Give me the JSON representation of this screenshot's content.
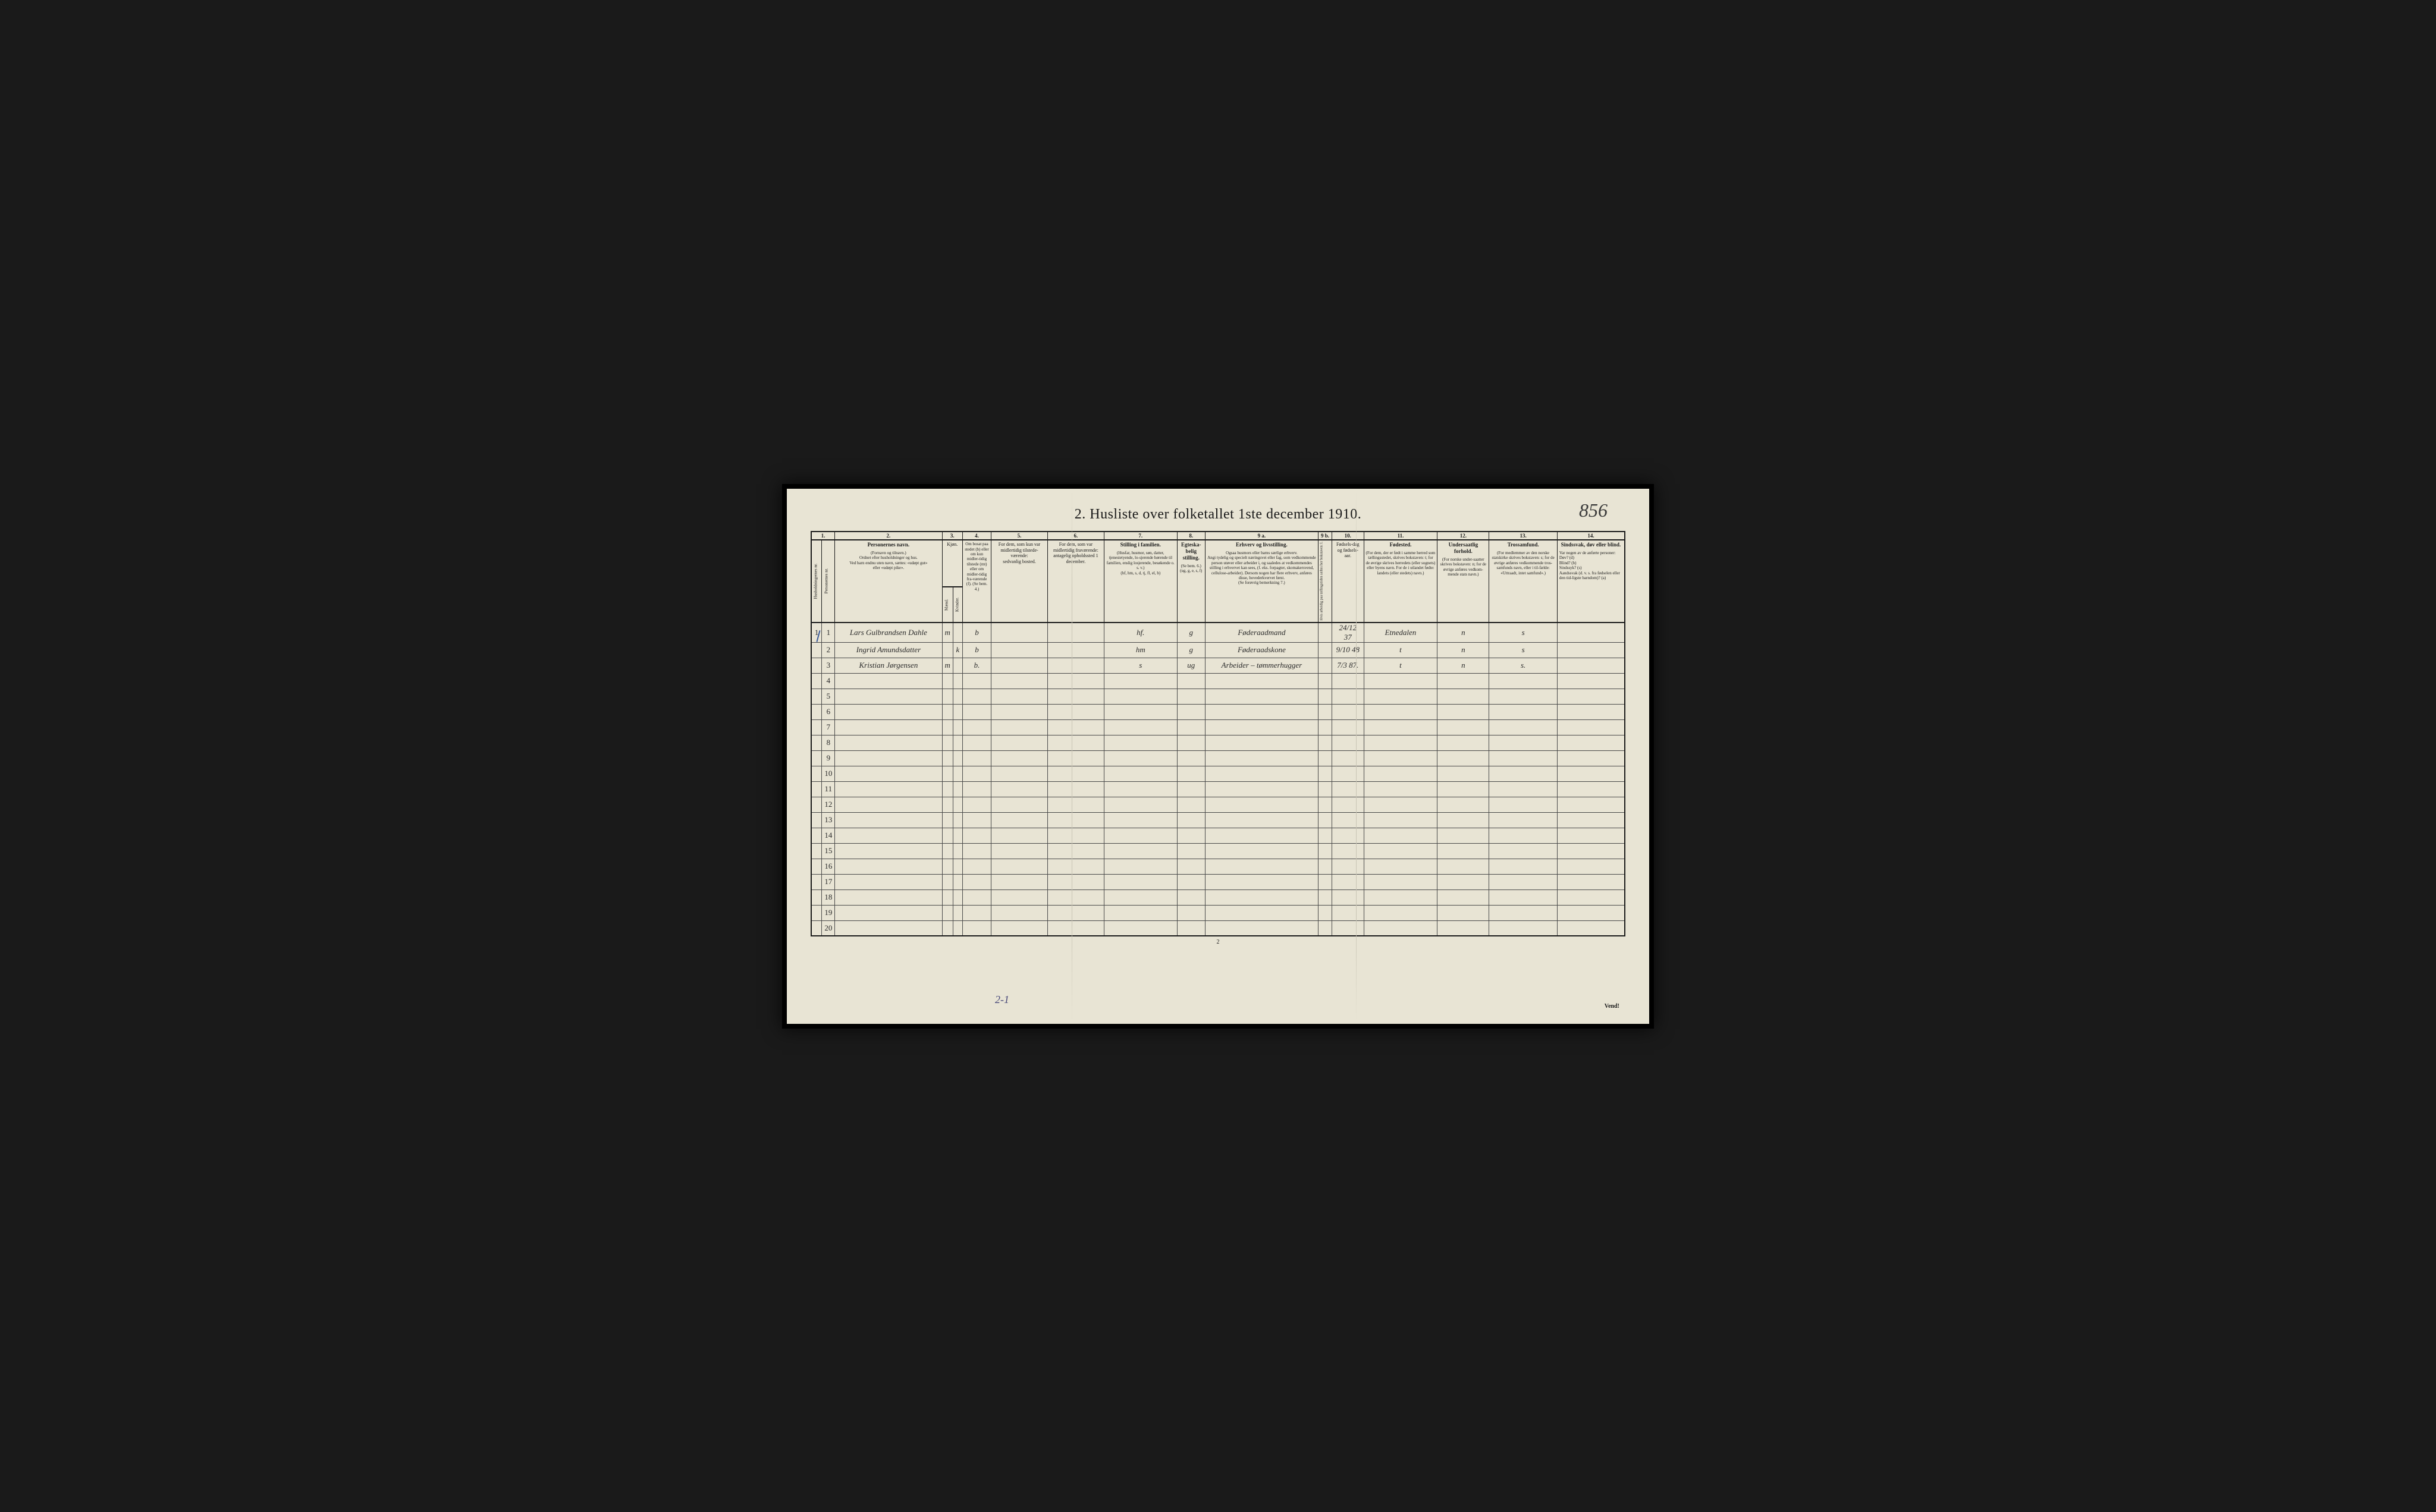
{
  "title": "2.  Husliste over folketallet 1ste december 1910.",
  "handwritten_page_number": "856",
  "footer_page": "2",
  "vend_label": "Vend!",
  "bottom_note": "2-1",
  "colors": {
    "page_bg": "#e8e4d4",
    "frame_bg": "#000000",
    "body_bg": "#1a1a1a",
    "border": "#1a1a1a",
    "cell_border": "#4a4a4a",
    "text": "#1a1a1a",
    "handwritten": "#2a2a2a",
    "blue_mark": "#3a5a9a",
    "fold": "#c8c4b4"
  },
  "column_numbers": [
    "1.",
    "2.",
    "3.",
    "4.",
    "5.",
    "6.",
    "7.",
    "8.",
    "9 a.",
    "9 b.",
    "10.",
    "11.",
    "12.",
    "13.",
    "14."
  ],
  "headers": {
    "col1_a": "Husholdningernes nr.",
    "col1_b": "Personernes nr.",
    "col2_main": "Personernes navn.",
    "col2_sub": "(Fornavn og tilnavn.)\nOrdnet efter husholdninger og hus.\nVed barn endnu uten navn, sættes: «udøpt gut»\neller «udøpt pike».",
    "col3_main": "Kjøn.",
    "col3_m": "Mænd.",
    "col3_k": "Kvinder.",
    "col3_mk": "m. k.",
    "col4": "Om bosat paa stedet (b) eller om kun midler-tidig tilstede (mt) eller om midler-tidig fra-værende (f). (Se bem. 4.)",
    "col5": "For dem, som kun var midlertidig tilstede-værende:\nsedvanlig bosted.",
    "col6": "For dem, som var midlertidig fraværende:\nantagelig opholdssted 1 december.",
    "col7_main": "Stilling i familien.",
    "col7_sub": "(Husfar, husmor, søn, datter, tjenestetyende, lo-sjerende hørende til familien, enslig losjerende, besøkende o. s. v.)\n(hf, hm, s, d, tj, fl, el, b)",
    "col8_main": "Egteska-belig stilling.",
    "col8_sub": "(Se bem. 6.)\n(ug, g, e, s, f)",
    "col9a_main": "Erhverv og livsstilling.",
    "col9a_sub": "Ogsaa husmors eller barns særlige erhverv.\nAngi tydelig og specielt næringsvei eller fag, som vedkommende person utøver eller arbeider i, og saaledes at vedkommendes stilling i erhvervet kan sees, (f. eks. forpagter, skomakersvend, cellulose-arbeider). Dersom nogen har flere erhverv, anføres disse, hovederkvervet først.\n(Se forøvrig bemerkning 7.)",
    "col9b": "Hvis arbeidig paa tællingstiden sæltes her bokstaven: l.",
    "col10_main": "Fødsels-dag og fødsels-aar.",
    "col11_main": "Fødested.",
    "col11_sub": "(For dem, der er født i samme herred som tællingsstedet, skrives bokstaven: t; for de øvrige skrives herredets (eller sognets) eller byens navn. For de i utlandet fødte: landets (eller stedets) navn.)",
    "col12_main": "Undersaatlig forhold.",
    "col12_sub": "(For norske under-saatter skrives bokstaven: n; for de øvrige anføres vedkom-mende stats navn.)",
    "col13_main": "Trossamfund.",
    "col13_sub": "(For medlemmer av den norske statskirke skrives bokstaven: s; for de øvrige anføres vedkommende tros-samfunds navn, eller i til-fælde: «Uttraadt, intet samfund».)",
    "col14_main": "Sindssvak, døv eller blind.",
    "col14_sub": "Var nogen av de anførte personer:\nDøv?       (d)\nBlind?     (b)\nSindssyk?  (s)\nAandssvak (d. v. s. fra fødselen eller den tid-ligste barndom)? (a)"
  },
  "col_widths": {
    "c1a": 18,
    "c1b": 18,
    "c2": 190,
    "c3m": 16,
    "c3k": 16,
    "c4": 50,
    "c5": 100,
    "c6": 100,
    "c7": 130,
    "c8": 48,
    "c9a": 200,
    "c9b": 24,
    "c10": 55,
    "c11": 130,
    "c12": 90,
    "c13": 120,
    "c14": 120
  },
  "rows": [
    {
      "n": "1",
      "name": "Lars Gulbrandsen Dahle",
      "sex_m": "m",
      "sex_k": "",
      "res": "b",
      "c5": "",
      "c6": "",
      "fam": "hf.",
      "mar": "g",
      "occ": "Føderaadmand",
      "c9b": "",
      "birth": "24/12 37",
      "place": "Etnedalen",
      "nat": "n",
      "rel": "s",
      "c14": ""
    },
    {
      "n": "2",
      "name": "Ingrid Amundsdatter",
      "sex_m": "",
      "sex_k": "k",
      "res": "b",
      "c5": "",
      "c6": "",
      "fam": "hm",
      "mar": "g",
      "occ": "Føderaadskone",
      "c9b": "",
      "birth": "9/10 48",
      "place": "t",
      "nat": "n",
      "rel": "s",
      "c14": ""
    },
    {
      "n": "3",
      "name": "Kristian Jørgensen",
      "sex_m": "m",
      "sex_k": "",
      "res": "b.",
      "c5": "",
      "c6": "",
      "fam": "s",
      "mar": "ug",
      "occ": "Arbeider – tømmerhugger",
      "c9b": "",
      "birth": "7/3 87.",
      "place": "t",
      "nat": "n",
      "rel": "s.",
      "c14": ""
    }
  ],
  "empty_row_count": 17,
  "total_rows": 20
}
